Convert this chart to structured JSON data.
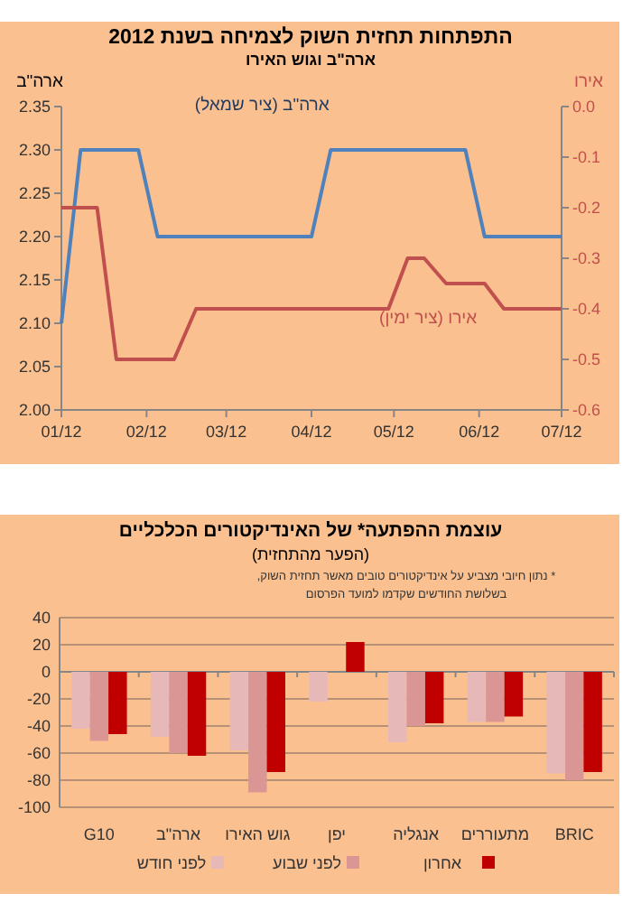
{
  "chart_data": [
    {
      "type": "line",
      "title": "התפתחות תחזית השוק לצמיחה בשנת 2012",
      "subtitle": "ארה\"ב וגוש האירו",
      "ylabel": "ארה\"ב",
      "y2label": "אירו",
      "xlim": [
        "2012-01-01",
        "2012-07-01"
      ],
      "xticks": [
        {
          "value": "2012-01-01",
          "label": "01/12"
        },
        {
          "value": "2012-02-01",
          "label": "02/12"
        },
        {
          "value": "2012-03-01",
          "label": "03/12"
        },
        {
          "value": "2012-04-01",
          "label": "04/12"
        },
        {
          "value": "2012-05-01",
          "label": "05/12"
        },
        {
          "value": "2012-06-01",
          "label": "06/12"
        },
        {
          "value": "2012-07-01",
          "label": "07/12"
        }
      ],
      "ylim": [
        2.0,
        2.35
      ],
      "yticks": [
        {
          "value": 2.0,
          "label": "2.00"
        },
        {
          "value": 2.05,
          "label": "2.05"
        },
        {
          "value": 2.1,
          "label": "2.10"
        },
        {
          "value": 2.15,
          "label": "2.15"
        },
        {
          "value": 2.2,
          "label": "2.20"
        },
        {
          "value": 2.25,
          "label": "2.25"
        },
        {
          "value": 2.3,
          "label": "2.30"
        },
        {
          "value": 2.35,
          "label": "2.35"
        }
      ],
      "y2lim": [
        -0.6,
        0
      ],
      "y2ticks": [
        {
          "value": -0.6,
          "label": "-0.6"
        },
        {
          "value": -0.5,
          "label": "-0.5"
        },
        {
          "value": -0.4,
          "label": "-0.4"
        },
        {
          "value": -0.3,
          "label": "-0.3"
        },
        {
          "value": -0.2,
          "label": "-0.2"
        },
        {
          "value": -0.1,
          "label": "-0.1"
        },
        {
          "value": 0,
          "label": "0.0"
        }
      ],
      "series": [
        {
          "name": "ארה\"ב (ציר שמאל)",
          "color": "#4f81bd",
          "axis": "y",
          "x": [
            "2012-01-01",
            "2012-01-08",
            "2012-01-29",
            "2012-02-05",
            "2012-04-01",
            "2012-04-08",
            "2012-05-27",
            "2012-06-03",
            "2012-07-01"
          ],
          "values": [
            2.1,
            2.3,
            2.3,
            2.2,
            2.2,
            2.3,
            2.3,
            2.2,
            2.2
          ]
        },
        {
          "name": "אירו (ציר ימין)",
          "color": "#c0504d",
          "axis": "y2",
          "x": [
            "2012-01-01",
            "2012-01-14",
            "2012-01-21",
            "2012-02-11",
            "2012-02-19",
            "2012-04-29",
            "2012-05-06",
            "2012-05-12",
            "2012-05-20",
            "2012-06-03",
            "2012-06-10",
            "2012-07-01"
          ],
          "values": [
            -0.2,
            -0.2,
            -0.5,
            -0.5,
            -0.4,
            -0.4,
            -0.3,
            -0.3,
            -0.35,
            -0.35,
            -0.4,
            -0.4
          ]
        }
      ],
      "grid": false
    },
    {
      "type": "bar",
      "title": "עוצמת ההפתעה* של האינדיקטורים הכלכליים",
      "subtitle": "(הפער מהתחזית)",
      "annotations": [
        "* נתון חיובי מצביע על אינדיקטורים טובים מאשר תחזית השוק,",
        "בשלושת החודשים שקדמו למועד הפרסום"
      ],
      "categories": [
        "G10",
        "ארה\"ב",
        "גוש האירו",
        "יפן",
        "אנגליה",
        "מתעוררים",
        "BRIC"
      ],
      "ylim": [
        -100,
        40
      ],
      "yticks": [
        -100,
        -80,
        -60,
        -40,
        -20,
        0,
        20,
        40
      ],
      "series": [
        {
          "name": "לפני חודש",
          "color": "#e6b9b8",
          "values": [
            -42,
            -48,
            -58,
            -22,
            -52,
            -37,
            -75
          ]
        },
        {
          "name": "לפני שבוע",
          "color": "#d99694",
          "values": [
            -51,
            -60,
            -89,
            0,
            -40,
            -37,
            -80
          ]
        },
        {
          "name": "אחרון",
          "color": "#c00000",
          "values": [
            -46,
            -62,
            -74,
            22,
            -38,
            -33,
            -74
          ]
        }
      ],
      "grid": "y",
      "legend": "bottom"
    }
  ]
}
